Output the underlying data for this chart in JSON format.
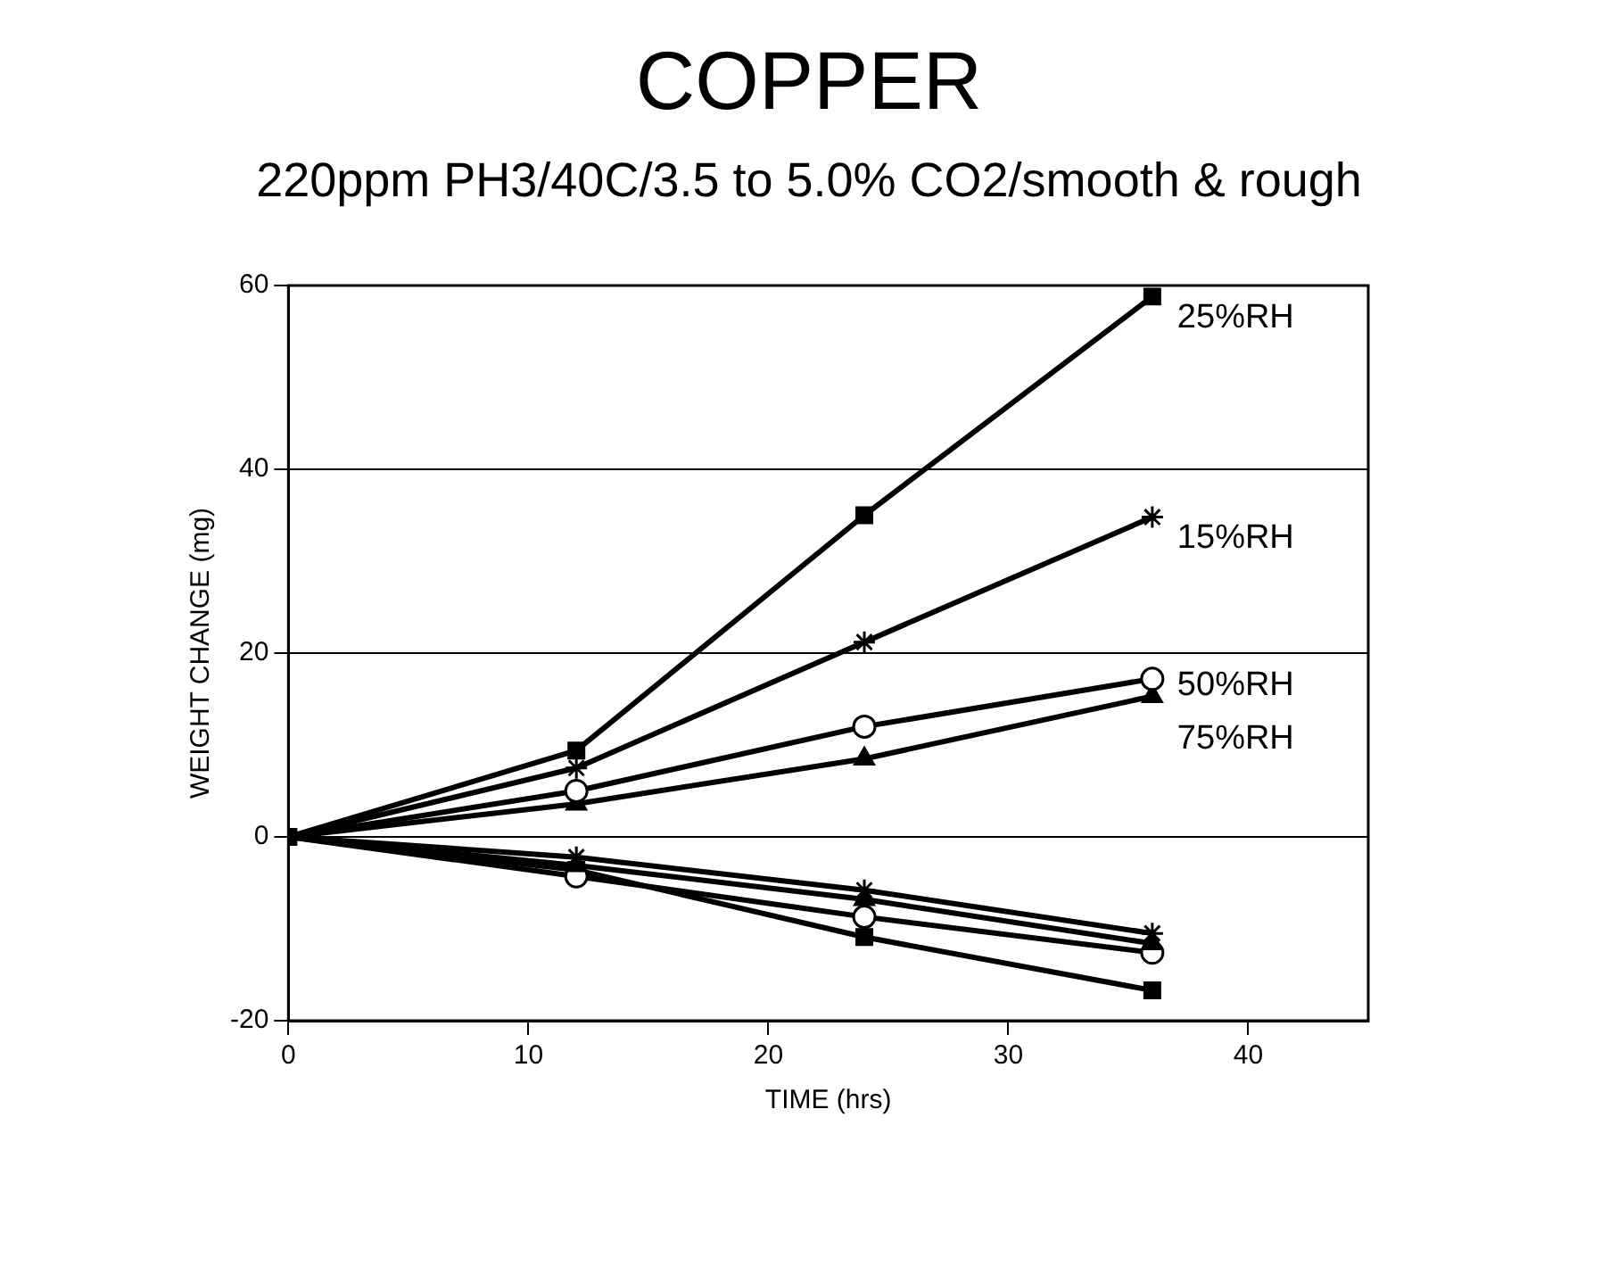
{
  "chart_data": {
    "type": "line",
    "title": "COPPER",
    "subtitle": "220ppm PH3/40C/3.5 to 5.0% CO2/smooth & rough",
    "xlabel": "TIME (hrs)",
    "ylabel": "WEIGHT CHANGE (mg)",
    "x": [
      0,
      12,
      24,
      36
    ],
    "series": [
      {
        "name": "25%RH",
        "color": "#000000",
        "marker": "square",
        "values": [
          0,
          9.4,
          35.0,
          58.8
        ]
      },
      {
        "name": "15%RH",
        "color": "#000000",
        "marker": "cross",
        "values": [
          0,
          7.5,
          21.2,
          34.8
        ]
      },
      {
        "name": "50%RH",
        "color": "#000000",
        "marker": "circle",
        "values": [
          0,
          5.0,
          12.0,
          17.2
        ]
      },
      {
        "name": "75%RH",
        "color": "#000000",
        "marker": "triangle",
        "values": [
          0,
          3.6,
          8.5,
          15.3
        ]
      },
      {
        "color": "#000000",
        "marker": "cross",
        "values": [
          0,
          -2.2,
          -5.8,
          -10.5
        ]
      },
      {
        "color": "#000000",
        "marker": "triangle",
        "values": [
          0,
          -3.1,
          -6.8,
          -11.6
        ]
      },
      {
        "color": "#000000",
        "marker": "circle",
        "values": [
          0,
          -4.3,
          -8.7,
          -12.6
        ]
      },
      {
        "color": "#000000",
        "marker": "square",
        "values": [
          0,
          -3.6,
          -10.9,
          -16.7
        ]
      }
    ],
    "xlim": [
      0,
      45
    ],
    "xticks": [
      0,
      10,
      20,
      30,
      40
    ],
    "ylim": [
      -20,
      60
    ],
    "yticks": [
      -20,
      0,
      20,
      40,
      60
    ],
    "grid": "y",
    "legend": false
  }
}
